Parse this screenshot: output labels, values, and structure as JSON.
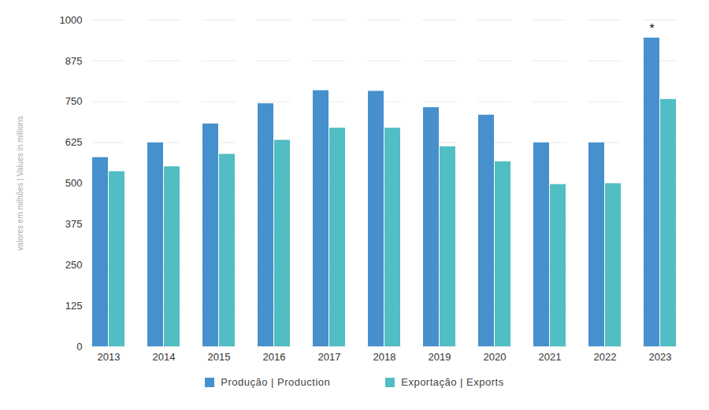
{
  "chart_data": {
    "type": "bar",
    "y_label": "valores em milhões | Values in millions",
    "categories": [
      "2013",
      "2014",
      "2015",
      "2016",
      "2017",
      "2018",
      "2019",
      "2020",
      "2021",
      "2022",
      "2023"
    ],
    "series": [
      {
        "name": "Produção | Production",
        "color": "#4590cd",
        "values": [
          579,
          624,
          682,
          744,
          784,
          782,
          732,
          709,
          624,
          624,
          945
        ]
      },
      {
        "name": "Exportação | Exports",
        "color": "#50bec3",
        "values": [
          536,
          551,
          589,
          632,
          669,
          669,
          612,
          566,
          496,
          499,
          757
        ]
      }
    ],
    "annotations": [
      {
        "text": "*",
        "category": "2023",
        "series": "Produção | Production"
      }
    ],
    "ylim": [
      0,
      1000
    ],
    "yticks": [
      0,
      125,
      250,
      375,
      500,
      625,
      750,
      875,
      1000
    ],
    "grid": true,
    "legend": "bottom"
  }
}
